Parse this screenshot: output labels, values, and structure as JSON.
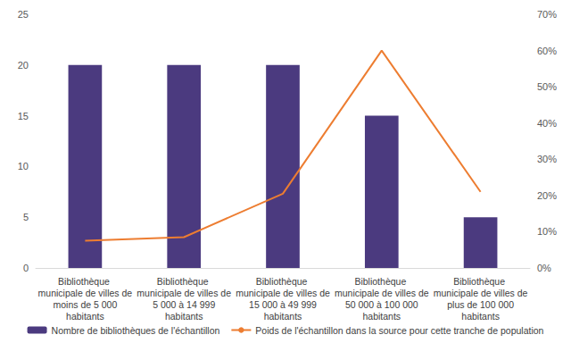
{
  "chart_data": {
    "type": "bar",
    "categories": [
      "Bibliothèque municipale de villes de moins de 5 000 habitants",
      "Bibliothèque municipale de villes de 5 000 à 14 999 habitants",
      "Bibliothèque municipale de villes de 15 000 à 49 999 habitants",
      "Bibliothèque municipale de villes de 50 000 à 100 000 habitants",
      "Bibliothèque municipale de villes de plus de 100 000 habitants"
    ],
    "series": [
      {
        "name": "Nombre de bibliothèques de l'échantillon",
        "type": "bar",
        "color": "#4b3a7f",
        "values": [
          20,
          20,
          20,
          15,
          5
        ]
      },
      {
        "name": "Poids de l'échantillon dans la source pour cette tranche de population",
        "type": "line",
        "axis": "y2",
        "color": "#ed7d31",
        "marker": "none",
        "line_style": "solid",
        "values": [
          7.5,
          8.5,
          20.5,
          60,
          21
        ]
      }
    ],
    "ylim": [
      0,
      25
    ],
    "yticks": [
      0,
      5,
      10,
      15,
      20,
      25
    ],
    "y2lim": [
      0,
      70
    ],
    "y2ticks": [
      {
        "value": 0,
        "label": "0%"
      },
      {
        "value": 10,
        "label": "10%"
      },
      {
        "value": 20,
        "label": "20%"
      },
      {
        "value": 30,
        "label": "30%"
      },
      {
        "value": 40,
        "label": "40%"
      },
      {
        "value": 50,
        "label": "50%"
      },
      {
        "value": 60,
        "label": "60%"
      },
      {
        "value": 70,
        "label": "70%"
      }
    ],
    "grid": false,
    "legend": "bottom"
  }
}
